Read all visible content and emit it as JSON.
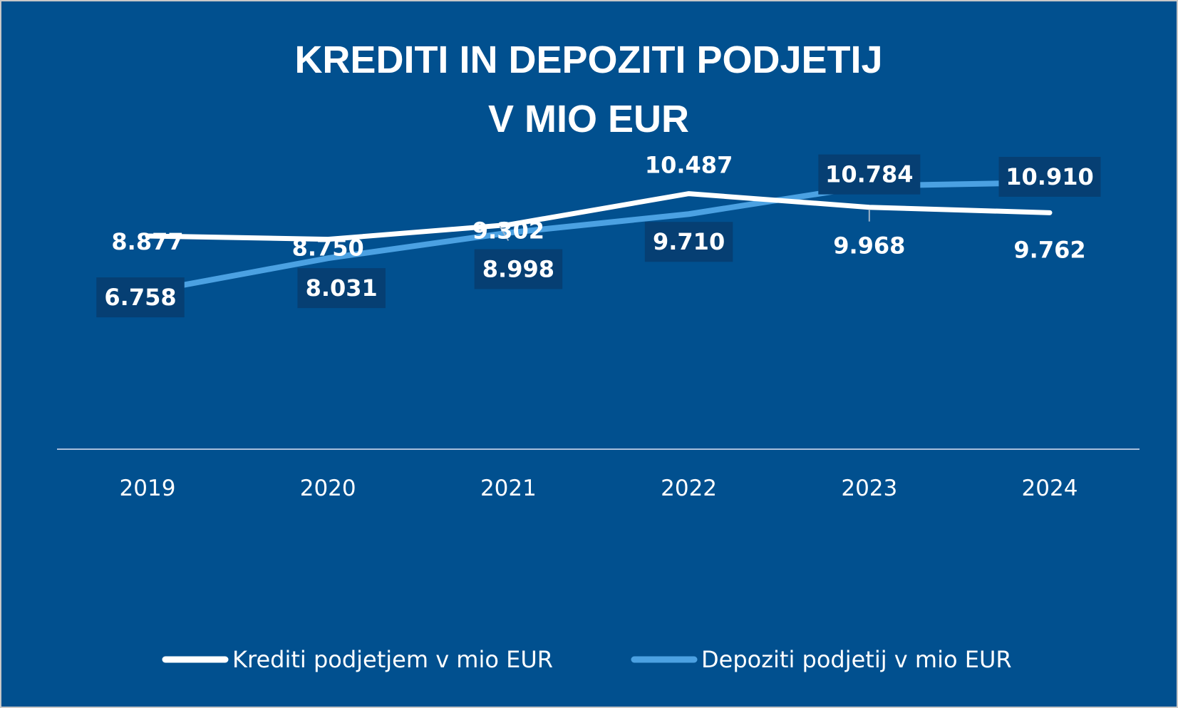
{
  "chart_data": {
    "type": "line",
    "title": "KREDITI IN DEPOZITI PODJETIJ",
    "subtitle": "V MIO EUR",
    "xlabel": "",
    "ylabel": "",
    "categories": [
      "2019",
      "2020",
      "2021",
      "2022",
      "2023",
      "2024"
    ],
    "series": [
      {
        "name": "Krediti podjetjem v mio EUR",
        "values": [
          8877,
          8750,
          9302,
          10487,
          9968,
          9762
        ],
        "labels": [
          "8.877",
          "8.750",
          "9.302",
          "10.487",
          "9.968",
          "9.762"
        ],
        "color": "#ffffff"
      },
      {
        "name": "Depoziti podjetij v mio EUR",
        "values": [
          6758,
          8031,
          8998,
          9710,
          10784,
          10910
        ],
        "labels": [
          "6.758",
          "8.031",
          "8.998",
          "9.710",
          "10.784",
          "10.910"
        ],
        "color": "#4ba1e2"
      }
    ],
    "y_axis_visible": false,
    "grid": false,
    "legend_position": "bottom",
    "background_color": "#01508f",
    "label_box_color": "#063f73"
  }
}
